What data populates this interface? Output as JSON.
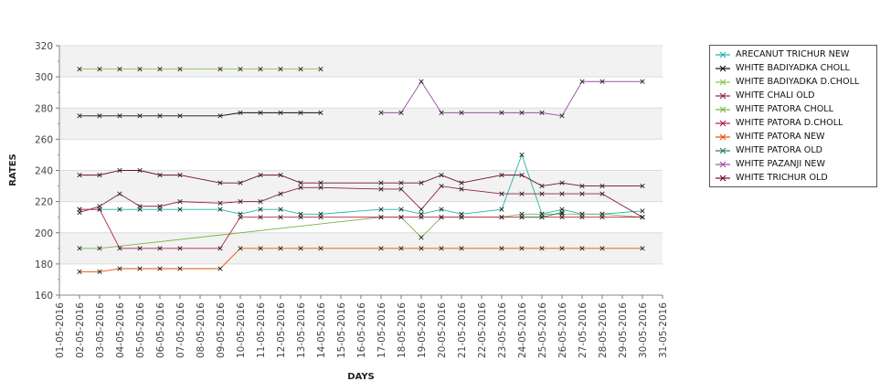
{
  "chart_data": {
    "type": "line",
    "xlabel": "DAYS",
    "ylabel": "RATES",
    "ylim": [
      160,
      320
    ],
    "yticks": [
      160,
      180,
      200,
      220,
      240,
      260,
      280,
      300,
      320
    ],
    "x_labels": [
      "01-05-2016",
      "02-05-2016",
      "03-05-2016",
      "04-05-2016",
      "05-05-2016",
      "06-05-2016",
      "07-05-2016",
      "08-05-2016",
      "09-05-2016",
      "10-05-2016",
      "11-05-2016",
      "12-05-2016",
      "13-05-2016",
      "14-05-2016",
      "15-05-2016",
      "16-05-2016",
      "17-05-2016",
      "18-05-2016",
      "19-05-2016",
      "20-05-2016",
      "21-05-2016",
      "22-05-2016",
      "23-05-2016",
      "24-05-2016",
      "25-05-2016",
      "26-05-2016",
      "27-05-2016",
      "28-05-2016",
      "29-05-2016",
      "30-05-2016",
      "31-05-2016"
    ],
    "legend_position": "right",
    "series": [
      {
        "name": "ARECANUT TRICHUR NEW",
        "color": "#1fb5a6",
        "points": [
          [
            2,
            215
          ],
          [
            3,
            215
          ],
          [
            4,
            215
          ],
          [
            5,
            215
          ],
          [
            6,
            215
          ],
          [
            7,
            215
          ],
          [
            9,
            215
          ],
          [
            10,
            212
          ],
          [
            11,
            215
          ],
          [
            12,
            215
          ],
          [
            13,
            212
          ],
          [
            14,
            212
          ],
          [
            17,
            215
          ],
          [
            18,
            215
          ],
          [
            19,
            212
          ],
          [
            20,
            215
          ],
          [
            21,
            212
          ],
          [
            23,
            215
          ],
          [
            24,
            250
          ],
          [
            25,
            212
          ],
          [
            26,
            215
          ],
          [
            27,
            212
          ],
          [
            28,
            212
          ],
          [
            30,
            214
          ]
        ]
      },
      {
        "name": "WHITE BADIYADKA CHOLL",
        "color": "#111111",
        "points": [
          [
            2,
            275
          ],
          [
            3,
            275
          ],
          [
            4,
            275
          ],
          [
            5,
            275
          ],
          [
            6,
            275
          ],
          [
            7,
            275
          ],
          [
            9,
            275
          ],
          [
            10,
            277
          ],
          [
            11,
            277
          ],
          [
            12,
            277
          ],
          [
            13,
            277
          ],
          [
            14,
            277
          ]
        ]
      },
      {
        "name": "WHITE BADIYADKA D.CHOLL",
        "color": "#8bc34a",
        "points": [
          [
            2,
            305
          ],
          [
            3,
            305
          ],
          [
            4,
            305
          ],
          [
            5,
            305
          ],
          [
            6,
            305
          ],
          [
            7,
            305
          ],
          [
            9,
            305
          ],
          [
            10,
            305
          ],
          [
            11,
            305
          ],
          [
            12,
            305
          ],
          [
            13,
            305
          ],
          [
            14,
            305
          ]
        ]
      },
      {
        "name": "WHITE CHALI OLD",
        "color": "#8e2443",
        "points": [
          [
            2,
            213
          ],
          [
            3,
            217
          ],
          [
            4,
            225
          ],
          [
            5,
            217
          ],
          [
            6,
            217
          ],
          [
            7,
            220
          ],
          [
            9,
            219
          ],
          [
            10,
            220
          ],
          [
            11,
            220
          ],
          [
            12,
            225
          ],
          [
            13,
            229
          ],
          [
            14,
            229
          ],
          [
            17,
            228
          ],
          [
            18,
            228
          ],
          [
            19,
            215
          ],
          [
            20,
            230
          ],
          [
            21,
            228
          ],
          [
            23,
            225
          ],
          [
            24,
            225
          ],
          [
            25,
            225
          ],
          [
            26,
            225
          ],
          [
            27,
            225
          ],
          [
            28,
            225
          ],
          [
            30,
            210
          ]
        ]
      },
      {
        "name": "WHITE PATORA CHOLL",
        "color": "#7cb342",
        "points": [
          [
            2,
            190
          ],
          [
            3,
            190
          ],
          [
            17,
            210
          ],
          [
            18,
            210
          ],
          [
            19,
            197
          ],
          [
            20,
            210
          ],
          [
            21,
            210
          ],
          [
            23,
            210
          ],
          [
            24,
            212
          ],
          [
            25,
            212
          ],
          [
            26,
            212
          ],
          [
            27,
            212
          ],
          [
            28,
            212
          ],
          [
            30,
            210
          ]
        ]
      },
      {
        "name": "WHITE PATORA D.CHOLL",
        "color": "#b71c4a",
        "points": [
          [
            2,
            215
          ],
          [
            3,
            215
          ],
          [
            4,
            190
          ],
          [
            5,
            190
          ],
          [
            6,
            190
          ],
          [
            7,
            190
          ],
          [
            9,
            190
          ],
          [
            10,
            210
          ],
          [
            11,
            210
          ],
          [
            12,
            210
          ],
          [
            13,
            210
          ],
          [
            14,
            210
          ],
          [
            17,
            210
          ],
          [
            18,
            210
          ],
          [
            19,
            210
          ],
          [
            20,
            210
          ],
          [
            21,
            210
          ],
          [
            23,
            210
          ],
          [
            24,
            210
          ],
          [
            25,
            210
          ],
          [
            26,
            210
          ],
          [
            27,
            210
          ],
          [
            28,
            210
          ],
          [
            30,
            210
          ]
        ]
      },
      {
        "name": "WHITE PATORA NEW",
        "color": "#e65100",
        "points": [
          [
            2,
            175
          ],
          [
            3,
            175
          ],
          [
            4,
            177
          ],
          [
            5,
            177
          ],
          [
            6,
            177
          ],
          [
            7,
            177
          ],
          [
            9,
            177
          ],
          [
            10,
            190
          ],
          [
            11,
            190
          ],
          [
            12,
            190
          ],
          [
            13,
            190
          ],
          [
            14,
            190
          ],
          [
            17,
            190
          ],
          [
            18,
            190
          ],
          [
            19,
            190
          ],
          [
            20,
            190
          ],
          [
            21,
            190
          ],
          [
            23,
            190
          ],
          [
            24,
            190
          ],
          [
            25,
            190
          ],
          [
            26,
            190
          ],
          [
            27,
            190
          ],
          [
            28,
            190
          ],
          [
            30,
            190
          ]
        ]
      },
      {
        "name": "WHITE PATORA OLD",
        "color": "#2e7d5b",
        "points": [
          [
            24,
            210
          ],
          [
            25,
            210
          ],
          [
            26,
            213
          ]
        ]
      },
      {
        "name": "WHITE PAZANJI NEW",
        "color": "#9c4fa8",
        "points": [
          [
            17,
            277
          ],
          [
            18,
            277
          ],
          [
            19,
            297
          ],
          [
            20,
            277
          ],
          [
            21,
            277
          ],
          [
            23,
            277
          ],
          [
            24,
            277
          ],
          [
            25,
            277
          ],
          [
            26,
            275
          ],
          [
            27,
            297
          ],
          [
            28,
            297
          ],
          [
            30,
            297
          ]
        ]
      },
      {
        "name": "WHITE TRICHUR OLD",
        "color": "#6d0f24",
        "points": [
          [
            2,
            237
          ],
          [
            3,
            237
          ],
          [
            4,
            240
          ],
          [
            5,
            240
          ],
          [
            6,
            237
          ],
          [
            7,
            237
          ],
          [
            9,
            232
          ],
          [
            10,
            232
          ],
          [
            11,
            237
          ],
          [
            12,
            237
          ],
          [
            13,
            232
          ],
          [
            14,
            232
          ],
          [
            17,
            232
          ],
          [
            18,
            232
          ],
          [
            19,
            232
          ],
          [
            20,
            237
          ],
          [
            21,
            232
          ],
          [
            23,
            237
          ],
          [
            24,
            237
          ],
          [
            25,
            230
          ],
          [
            26,
            232
          ],
          [
            27,
            230
          ],
          [
            28,
            230
          ],
          [
            30,
            230
          ]
        ]
      }
    ]
  }
}
